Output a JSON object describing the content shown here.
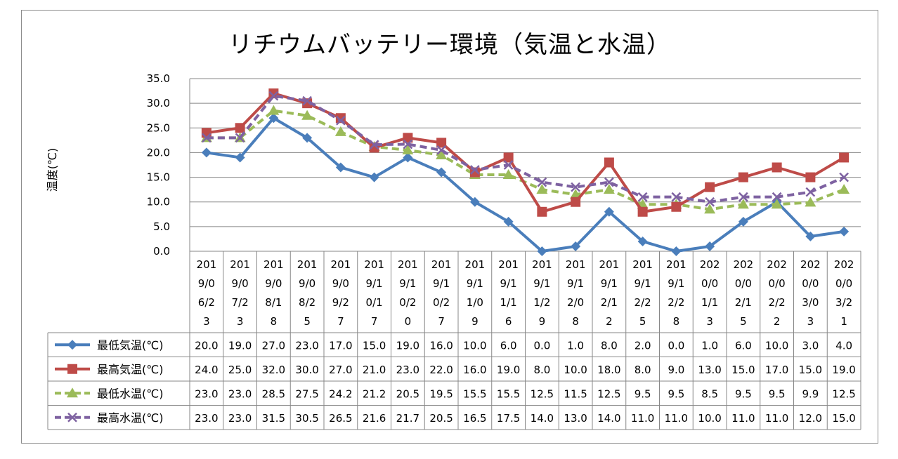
{
  "chart_data": {
    "type": "line",
    "title": "リチウムバッテリー環境（気温と水温）",
    "ylabel": "温度(℃)",
    "xlabel": "",
    "ylim": [
      0,
      35
    ],
    "yticks": [
      "0.0",
      "5.0",
      "10.0",
      "15.0",
      "20.0",
      "25.0",
      "30.0",
      "35.0"
    ],
    "grid": true,
    "legend": "data-table",
    "categories": [
      [
        "201",
        "9/0",
        "6/2",
        "3"
      ],
      [
        "201",
        "9/0",
        "7/2",
        "3"
      ],
      [
        "201",
        "9/0",
        "8/1",
        "8"
      ],
      [
        "201",
        "9/0",
        "8/2",
        "5"
      ],
      [
        "201",
        "9/0",
        "9/2",
        "7"
      ],
      [
        "201",
        "9/1",
        "0/1",
        "7"
      ],
      [
        "201",
        "9/1",
        "0/2",
        "0"
      ],
      [
        "201",
        "9/1",
        "0/2",
        "7"
      ],
      [
        "201",
        "9/1",
        "1/0",
        "9"
      ],
      [
        "201",
        "9/1",
        "1/1",
        "6"
      ],
      [
        "201",
        "9/1",
        "1/2",
        "9"
      ],
      [
        "201",
        "9/1",
        "2/0",
        "8"
      ],
      [
        "201",
        "9/1",
        "2/1",
        "2"
      ],
      [
        "201",
        "9/1",
        "2/2",
        "5"
      ],
      [
        "201",
        "9/1",
        "2/2",
        "8"
      ],
      [
        "202",
        "0/0",
        "1/1",
        "3"
      ],
      [
        "202",
        "0/0",
        "2/1",
        "5"
      ],
      [
        "202",
        "0/0",
        "2/2",
        "2"
      ],
      [
        "202",
        "0/0",
        "3/0",
        "3"
      ],
      [
        "202",
        "0/0",
        "3/2",
        "1"
      ]
    ],
    "series": [
      {
        "name": "最低気温(℃)",
        "color": "#4a7ebb",
        "marker": "diamond",
        "dash": "solid",
        "values": [
          20.0,
          19.0,
          27.0,
          23.0,
          17.0,
          15.0,
          19.0,
          16.0,
          10.0,
          6.0,
          0.0,
          1.0,
          8.0,
          2.0,
          0.0,
          1.0,
          6.0,
          10.0,
          3.0,
          4.0
        ],
        "labels": [
          "20.0",
          "19.0",
          "27.0",
          "23.0",
          "17.0",
          "15.0",
          "19.0",
          "16.0",
          "10.0",
          "6.0",
          "0.0",
          "1.0",
          "8.0",
          "2.0",
          "0.0",
          "1.0",
          "6.0",
          "10.0",
          "3.0",
          "4.0"
        ]
      },
      {
        "name": "最高気温(℃)",
        "color": "#be4b48",
        "marker": "square",
        "dash": "solid",
        "values": [
          24.0,
          25.0,
          32.0,
          30.0,
          27.0,
          21.0,
          23.0,
          22.0,
          16.0,
          19.0,
          8.0,
          10.0,
          18.0,
          8.0,
          9.0,
          13.0,
          15.0,
          17.0,
          15.0,
          19.0
        ],
        "labels": [
          "24.0",
          "25.0",
          "32.0",
          "30.0",
          "27.0",
          "21.0",
          "23.0",
          "22.0",
          "16.0",
          "19.0",
          "8.0",
          "10.0",
          "18.0",
          "8.0",
          "9.0",
          "13.0",
          "15.0",
          "17.0",
          "15.0",
          "19.0"
        ]
      },
      {
        "name": "最低水温(℃)",
        "color": "#9bbb59",
        "marker": "triangle",
        "dash": "dashed",
        "values": [
          23.0,
          23.0,
          28.5,
          27.5,
          24.2,
          21.2,
          20.5,
          19.5,
          15.5,
          15.5,
          12.5,
          11.5,
          12.5,
          9.5,
          9.5,
          8.5,
          9.5,
          9.5,
          9.9,
          12.5
        ],
        "labels": [
          "23.0",
          "23.0",
          "28.5",
          "27.5",
          "24.2",
          "21.2",
          "20.5",
          "19.5",
          "15.5",
          "15.5",
          "12.5",
          "11.5",
          "12.5",
          "9.5",
          "9.5",
          "8.5",
          "9.5",
          "9.5",
          "9.9",
          "12.5"
        ]
      },
      {
        "name": "最高水温(℃)",
        "color": "#7e62a1",
        "marker": "x",
        "dash": "dashed",
        "values": [
          23.0,
          23.0,
          31.5,
          30.5,
          26.5,
          21.6,
          21.7,
          20.5,
          16.5,
          17.5,
          14.0,
          13.0,
          14.0,
          11.0,
          11.0,
          10.0,
          11.0,
          11.0,
          12.0,
          15.0
        ],
        "labels": [
          "23.0",
          "23.0",
          "31.5",
          "30.5",
          "26.5",
          "21.6",
          "21.7",
          "20.5",
          "16.5",
          "17.5",
          "14.0",
          "13.0",
          "14.0",
          "11.0",
          "11.0",
          "10.0",
          "11.0",
          "11.0",
          "12.0",
          "15.0"
        ]
      }
    ]
  }
}
